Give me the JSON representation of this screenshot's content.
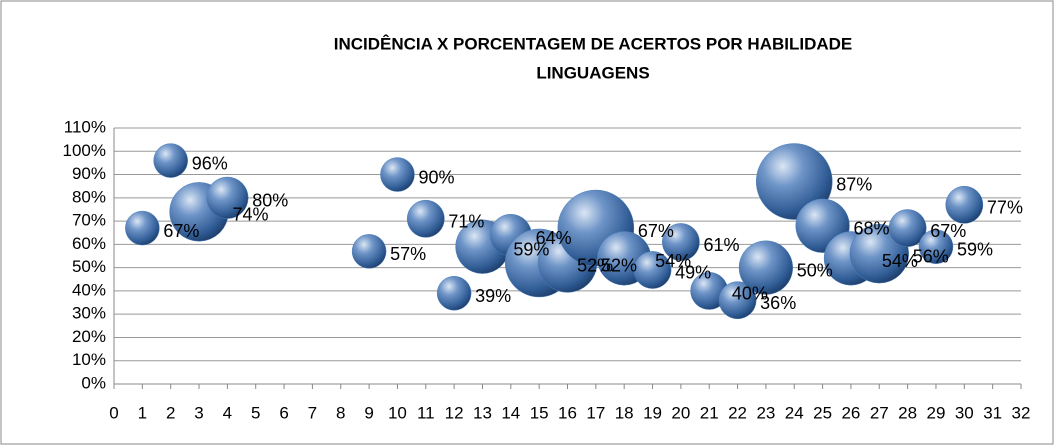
{
  "chart_data": {
    "type": "bubble",
    "title": [
      "INCIDÊNCIA X PORCENTAGEM DE ACERTOS POR HABILIDADE",
      "LINGUAGENS"
    ],
    "color": "#4f81bd",
    "x": [
      1,
      2,
      3,
      4,
      9,
      10,
      11,
      12,
      13,
      14,
      15,
      16,
      17,
      18,
      19,
      20,
      21,
      22,
      23,
      24,
      25,
      26,
      27,
      28,
      29,
      30
    ],
    "values": [
      67,
      96,
      74,
      80,
      57,
      90,
      71,
      39,
      59,
      64,
      52,
      52,
      67,
      54,
      49,
      61,
      40,
      36,
      50,
      87,
      68,
      54,
      56,
      67,
      59,
      77
    ],
    "value_labels": [
      "67%",
      "96%",
      "74%",
      "80%",
      "57%",
      "90%",
      "71%",
      "39%",
      "59%",
      "64%",
      "52%",
      "52%",
      "67%",
      "54%",
      "49%",
      "61%",
      "40%",
      "36%",
      "50%",
      "87%",
      "68%",
      "54%",
      "56%",
      "67%",
      "59%",
      "77%"
    ],
    "sizes": [
      1,
      1,
      3,
      1.5,
      1,
      1,
      1.2,
      1,
      2.5,
      1.5,
      4,
      3,
      5,
      2.5,
      1.2,
      1.2,
      1.2,
      1.2,
      2.5,
      5,
      2.5,
      2.5,
      3,
      1.2,
      1,
      1.2
    ],
    "xlim": [
      0,
      32
    ],
    "xticks": [
      0,
      1,
      2,
      3,
      4,
      5,
      6,
      7,
      8,
      9,
      10,
      11,
      12,
      13,
      14,
      15,
      16,
      17,
      18,
      19,
      20,
      21,
      22,
      23,
      24,
      25,
      26,
      27,
      28,
      29,
      30,
      31,
      32
    ],
    "ylim": [
      0,
      110
    ],
    "yticks": [
      {
        "value": 0,
        "label": "0%"
      },
      {
        "value": 10,
        "label": "10%"
      },
      {
        "value": 20,
        "label": "20%"
      },
      {
        "value": 30,
        "label": "30%"
      },
      {
        "value": 40,
        "label": "40%"
      },
      {
        "value": 50,
        "label": "50%"
      },
      {
        "value": 60,
        "label": "60%"
      },
      {
        "value": 70,
        "label": "70%"
      },
      {
        "value": 80,
        "label": "80%"
      },
      {
        "value": 90,
        "label": "90%"
      },
      {
        "value": 100,
        "label": "100%"
      },
      {
        "value": 110,
        "label": "110%"
      }
    ],
    "grid": true
  }
}
